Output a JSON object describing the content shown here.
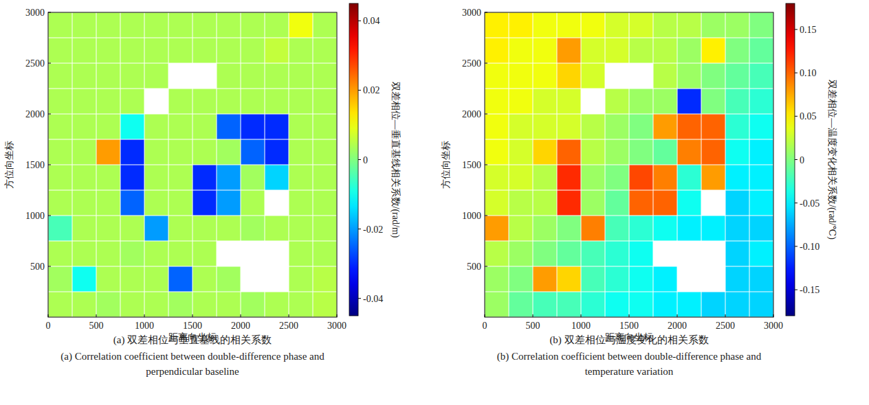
{
  "chart_data": [
    {
      "type": "heatmap",
      "title": "(a) 双差相位与垂直基线的相关系数",
      "subtitle": "(a) Correlation coefficient between double-difference phase and perpendicular baseline",
      "x_label": "距离向坐标",
      "y_label": "方位向坐标",
      "xlim": [
        0,
        3000
      ],
      "ylim": [
        0,
        3000
      ],
      "xticks": [
        0,
        500,
        1000,
        1500,
        2000,
        2500,
        3000
      ],
      "yticks": [
        500,
        1000,
        1500,
        2000,
        2500,
        3000
      ],
      "x": [
        125,
        375,
        625,
        875,
        1125,
        1375,
        1625,
        1875,
        2125,
        2375,
        2625,
        2875
      ],
      "y": [
        125,
        375,
        625,
        875,
        1125,
        1375,
        1625,
        1875,
        2125,
        2375,
        2625,
        2875
      ],
      "cells": [
        [
          0.004,
          0.004,
          0.003,
          0.004,
          0.004,
          0.003,
          0.004,
          0.004,
          0.003,
          0.004,
          0.004,
          0.005
        ],
        [
          0.003,
          -0.01,
          0.004,
          0.004,
          0.004,
          -0.025,
          0.004,
          0.003,
          null,
          null,
          0.004,
          0.005
        ],
        [
          0.004,
          0.004,
          0.004,
          0.003,
          0.004,
          0.004,
          0.004,
          null,
          null,
          null,
          0.004,
          0.004
        ],
        [
          -0.005,
          0.004,
          0.004,
          0.004,
          -0.02,
          0.004,
          0.004,
          0.004,
          0.003,
          0.004,
          0.004,
          0.004
        ],
        [
          0.004,
          0.004,
          0.004,
          -0.025,
          0.004,
          0.004,
          -0.03,
          -0.02,
          0.004,
          null,
          0.004,
          0.004
        ],
        [
          0.004,
          0.004,
          0.004,
          -0.03,
          0.004,
          0.004,
          -0.03,
          -0.02,
          0.003,
          -0.015,
          0.004,
          0.004
        ],
        [
          0.004,
          0.004,
          0.02,
          -0.03,
          0.004,
          0.004,
          0.004,
          0.003,
          -0.025,
          -0.03,
          0.004,
          0.004
        ],
        [
          0.004,
          0.004,
          0.004,
          -0.01,
          0.004,
          0.004,
          0.004,
          -0.025,
          -0.03,
          -0.03,
          0.004,
          0.004
        ],
        [
          0.004,
          0.004,
          0.004,
          0.004,
          null,
          0.004,
          0.004,
          0.004,
          0.004,
          0.004,
          0.004,
          0.004
        ],
        [
          0.004,
          0.004,
          0.004,
          0.004,
          0.004,
          null,
          null,
          0.004,
          0.004,
          0.004,
          0.004,
          0.004
        ],
        [
          0.004,
          0.004,
          0.004,
          0.004,
          0.004,
          0.004,
          0.004,
          0.004,
          0.004,
          0.006,
          0.004,
          0.004
        ],
        [
          0.004,
          0.004,
          0.004,
          0.004,
          0.004,
          0.004,
          0.004,
          0.004,
          0.004,
          0.004,
          0.01,
          0.004
        ]
      ],
      "colorbar_label": "双差相位—垂直基线相关系数/(rad/m)",
      "colorbar_range": [
        -0.045,
        0.045
      ],
      "colorbar_ticks": [
        -0.04,
        -0.02,
        0,
        0.02,
        0.04
      ]
    },
    {
      "type": "heatmap",
      "title": "(b) 双差相位与温度变化的相关系数",
      "subtitle": "(b) Correlation coefficient between double-difference phase and temperature variation",
      "x_label": "距离向坐标",
      "y_label": "方位向坐标",
      "xlim": [
        0,
        3000
      ],
      "ylim": [
        0,
        3000
      ],
      "xticks": [
        0,
        500,
        1000,
        1500,
        2000,
        2500,
        3000
      ],
      "yticks": [
        500,
        1000,
        1500,
        2000,
        2500,
        3000
      ],
      "x": [
        125,
        375,
        625,
        875,
        1125,
        1375,
        1625,
        1875,
        2125,
        2375,
        2625,
        2875
      ],
      "y": [
        125,
        375,
        625,
        875,
        1125,
        1375,
        1625,
        1875,
        2125,
        2375,
        2625,
        2875
      ],
      "cells": [
        [
          0.01,
          -0.01,
          -0.02,
          -0.02,
          -0.03,
          -0.04,
          -0.04,
          -0.05,
          -0.05,
          -0.06,
          -0.06,
          -0.06
        ],
        [
          0.01,
          0.0,
          0.08,
          0.06,
          -0.02,
          -0.03,
          -0.04,
          -0.05,
          null,
          null,
          -0.06,
          -0.06
        ],
        [
          0.02,
          0.01,
          0.0,
          -0.01,
          -0.02,
          -0.03,
          -0.04,
          null,
          null,
          null,
          -0.06,
          -0.05
        ],
        [
          0.08,
          0.02,
          0.01,
          0.0,
          0.09,
          -0.02,
          -0.03,
          -0.04,
          -0.05,
          -0.05,
          -0.06,
          -0.06
        ],
        [
          0.03,
          0.02,
          0.02,
          0.12,
          0.01,
          -0.01,
          0.1,
          0.1,
          -0.04,
          null,
          -0.06,
          -0.05
        ],
        [
          0.03,
          0.03,
          0.02,
          0.12,
          0.01,
          0.0,
          0.11,
          0.09,
          -0.03,
          0.08,
          -0.05,
          -0.05
        ],
        [
          0.04,
          0.03,
          0.06,
          0.1,
          0.02,
          0.01,
          0.0,
          -0.01,
          0.09,
          0.1,
          -0.04,
          -0.05
        ],
        [
          0.04,
          0.03,
          0.03,
          0.03,
          0.02,
          0.01,
          0.0,
          0.08,
          0.1,
          0.1,
          -0.03,
          -0.04
        ],
        [
          0.04,
          0.04,
          0.03,
          0.03,
          null,
          0.02,
          0.01,
          0.01,
          -0.12,
          0.0,
          -0.02,
          -0.03
        ],
        [
          0.04,
          0.04,
          0.04,
          0.06,
          0.03,
          null,
          null,
          0.02,
          0.01,
          0.0,
          -0.01,
          -0.02
        ],
        [
          0.05,
          0.04,
          0.04,
          0.08,
          0.03,
          0.03,
          0.02,
          0.02,
          0.01,
          0.05,
          0.0,
          -0.01
        ],
        [
          0.05,
          0.05,
          0.04,
          0.04,
          0.04,
          0.03,
          0.03,
          0.02,
          0.02,
          0.01,
          0.01,
          0.0
        ]
      ],
      "colorbar_label": "双差相位—温度变化相关系数/(rad/℃)",
      "colorbar_range": [
        -0.18,
        0.18
      ],
      "colorbar_ticks": [
        -0.15,
        {
          "value": -0.1,
          "label": "-0.10"
        },
        -0.05,
        0,
        0.05,
        {
          "value": 0.1,
          "label": "0.10"
        },
        0.15
      ]
    }
  ]
}
